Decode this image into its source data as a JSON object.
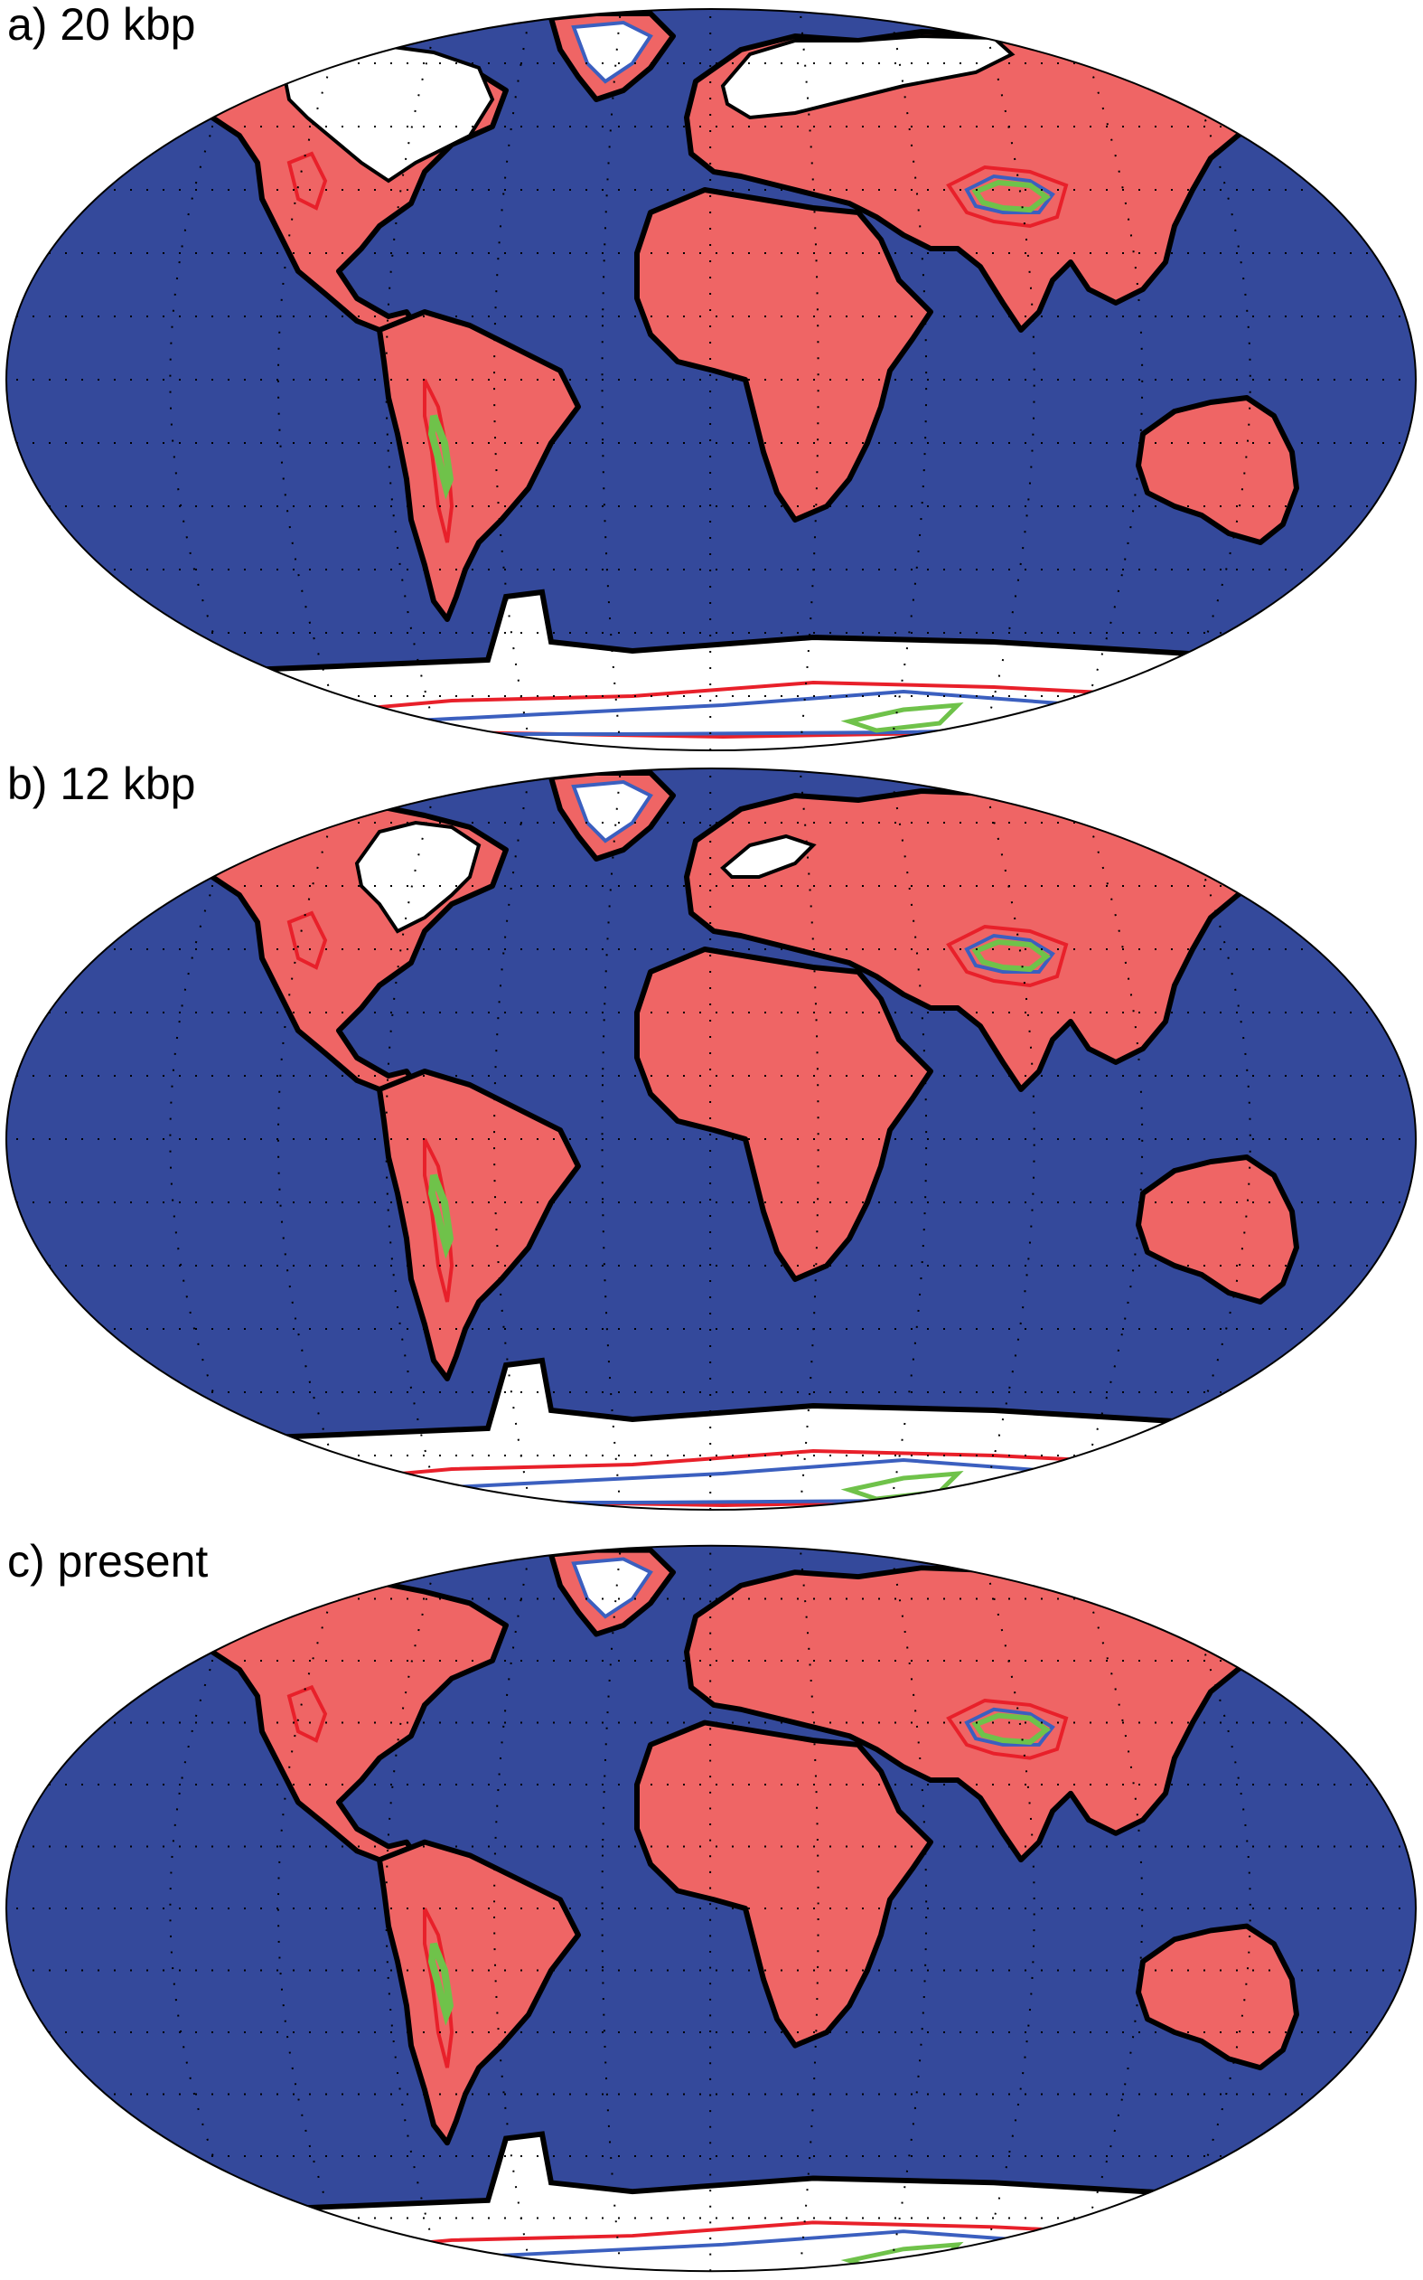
{
  "panels": [
    {
      "label": "a) 20 kbp"
    },
    {
      "label": "b) 12 kbp"
    },
    {
      "label": "c) present"
    }
  ],
  "colors": {
    "ocean": "#34499b",
    "land": "#ef6565",
    "ice": "#ffffff",
    "coastline": "#000000",
    "contour_red": "#e8202a",
    "contour_blue": "#3b5fbf",
    "contour_green": "#6fc24a",
    "graticule_dots": "#000000"
  },
  "projection": "Robinson"
}
